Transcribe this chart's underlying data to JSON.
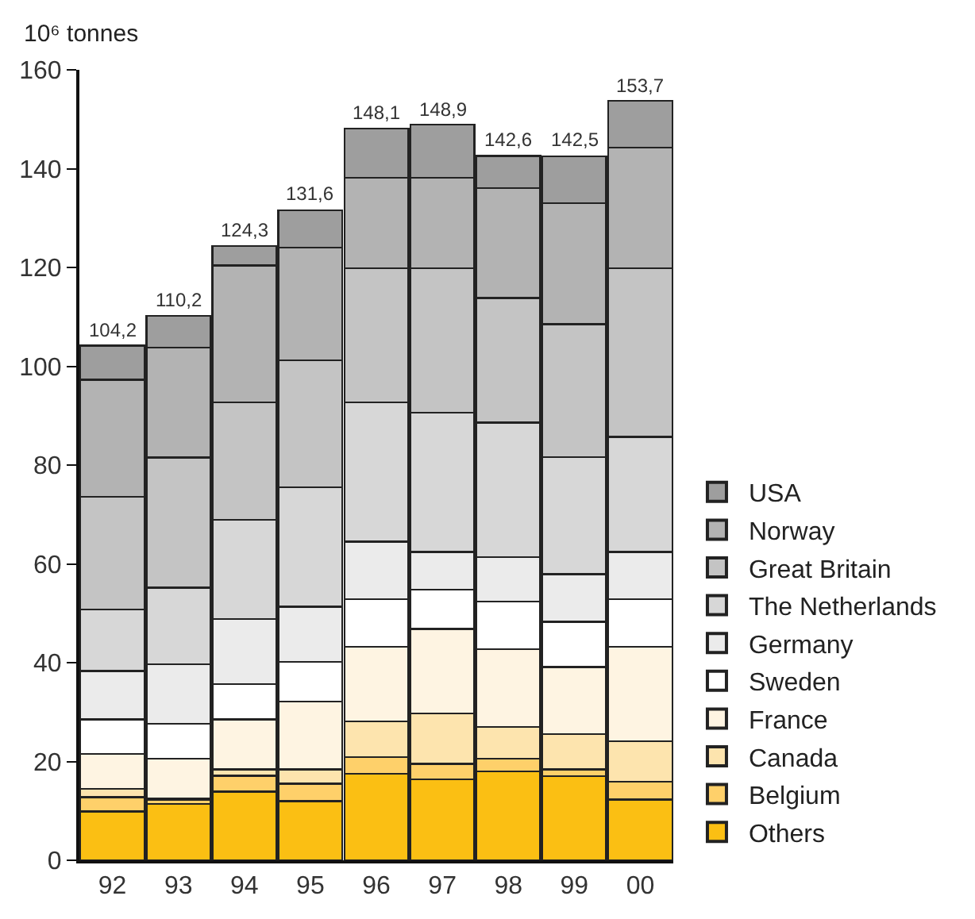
{
  "chart_data": {
    "type": "bar",
    "stacked": true,
    "ylabel": "10⁶ tonnes",
    "categories": [
      "92",
      "93",
      "94",
      "95",
      "96",
      "97",
      "98",
      "99",
      "00"
    ],
    "series": [
      {
        "name": "Others",
        "color": "#fbbf13",
        "values": [
          9.9,
          11.4,
          13.9,
          12.0,
          17.5,
          16.4,
          18.0,
          17.0,
          12.3
        ]
      },
      {
        "name": "Belgium",
        "color": "#fed06a",
        "values": [
          2.9,
          0.8,
          3.2,
          3.5,
          3.4,
          3.1,
          2.6,
          1.4,
          3.6
        ]
      },
      {
        "name": "Canada",
        "color": "#fde4ae",
        "values": [
          1.7,
          0.3,
          1.3,
          2.9,
          7.2,
          10.2,
          6.4,
          7.1,
          8.2
        ]
      },
      {
        "name": "France",
        "color": "#fef4e2",
        "values": [
          7.0,
          8.1,
          10.1,
          13.7,
          15.1,
          17.1,
          15.7,
          13.6,
          19.1
        ]
      },
      {
        "name": "Sweden",
        "color": "#ffffff",
        "values": [
          7.0,
          7.0,
          7.2,
          8.1,
          9.7,
          8.0,
          9.7,
          9.2,
          9.7
        ]
      },
      {
        "name": "Germany",
        "color": "#ebebeb",
        "values": [
          9.8,
          12.1,
          13.1,
          11.1,
          11.6,
          7.6,
          9.0,
          9.6,
          9.5
        ]
      },
      {
        "name": "The Netherlands",
        "color": "#d7d7d7",
        "values": [
          12.5,
          15.5,
          20.1,
          24.2,
          28.2,
          28.2,
          27.2,
          23.7,
          23.3
        ]
      },
      {
        "name": "Great Britain",
        "color": "#c4c4c4",
        "values": [
          22.8,
          26.3,
          23.8,
          25.7,
          27.1,
          29.2,
          25.2,
          26.9,
          34.1
        ]
      },
      {
        "name": "Norway",
        "color": "#b3b3b3",
        "values": [
          23.7,
          22.3,
          27.7,
          22.8,
          18.4,
          18.4,
          22.3,
          24.5,
          24.5
        ]
      },
      {
        "name": "USA",
        "color": "#9e9e9e",
        "values": [
          6.9,
          6.4,
          3.9,
          7.6,
          9.9,
          10.7,
          6.5,
          9.5,
          9.4
        ]
      }
    ],
    "totals": [
      "104,2",
      "110,2",
      "124,3",
      "131,6",
      "148,1",
      "148,9",
      "142,6",
      "142,5",
      "153,7"
    ],
    "ylim": [
      0,
      160
    ],
    "yticks": [
      0,
      20,
      40,
      60,
      80,
      100,
      120,
      140,
      160
    ],
    "legend": "right"
  }
}
